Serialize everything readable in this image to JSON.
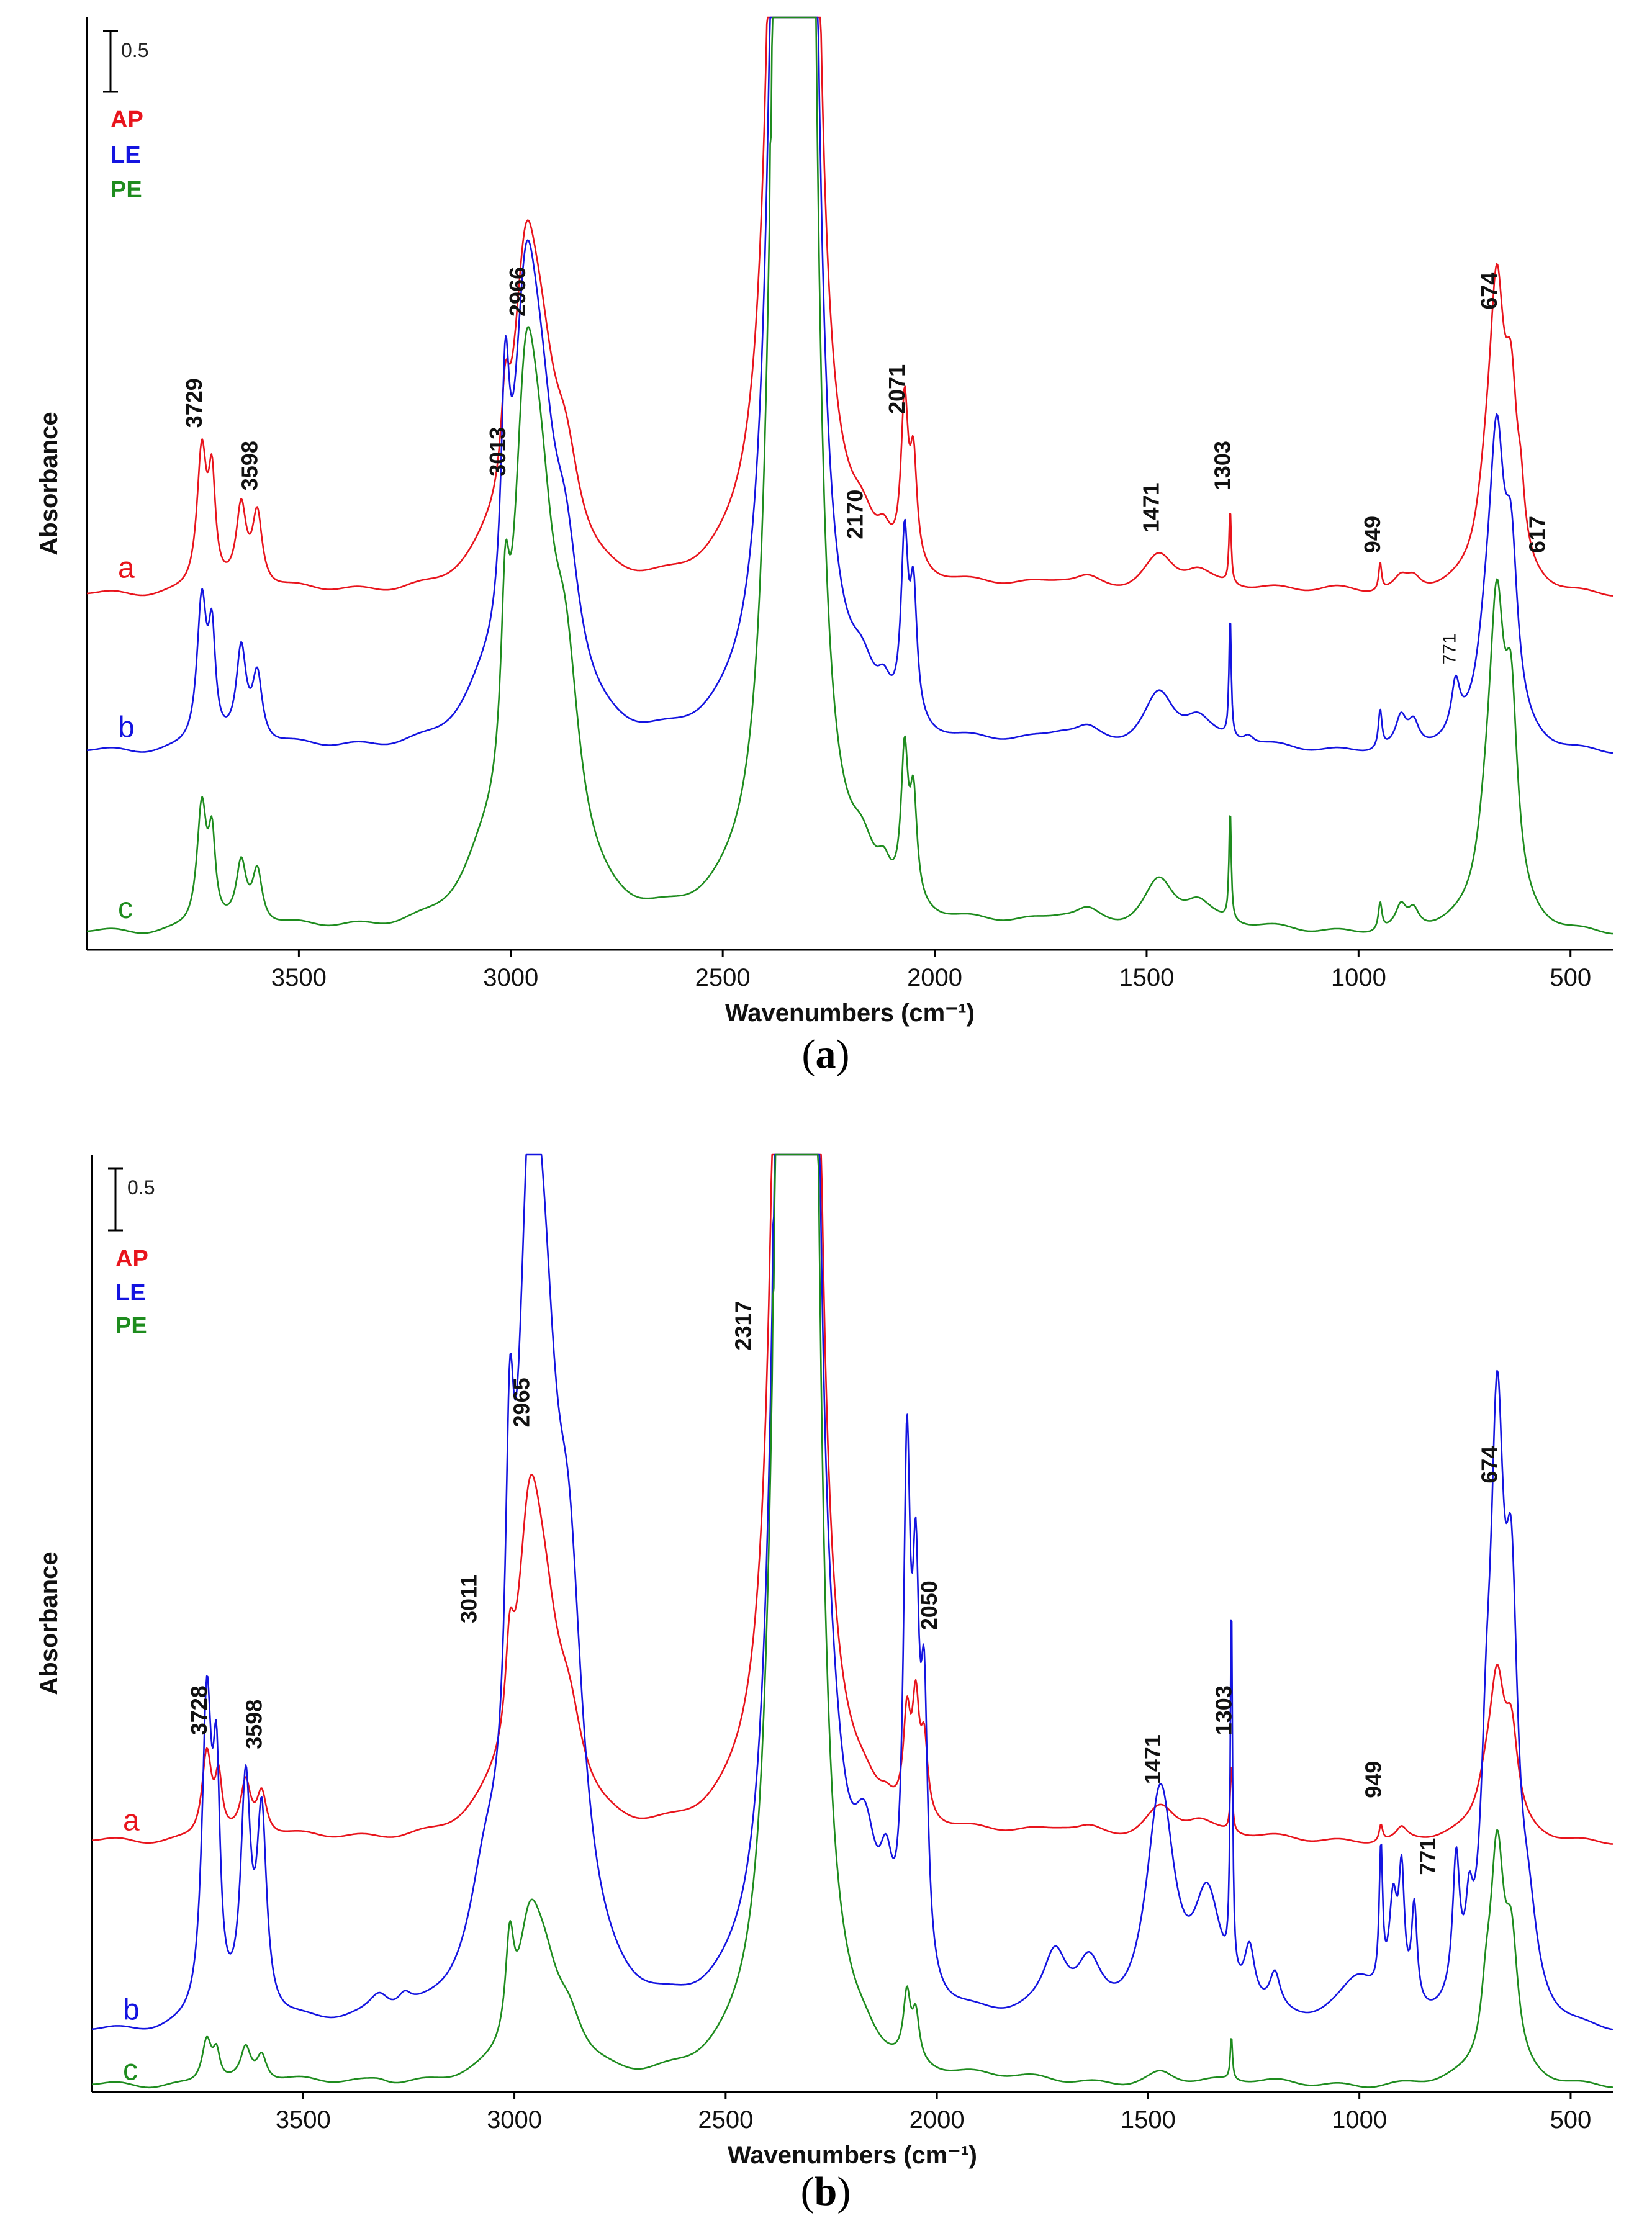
{
  "chart_data": [
    {
      "id": "panel-a",
      "type": "line",
      "caption": "(a)",
      "caption_letter": "a",
      "xlabel": "Wavenumbers (cm⁻¹)",
      "ylabel": "Absorbance",
      "xlim": [
        4000,
        400
      ],
      "ylim": [
        0,
        6.7
      ],
      "xticks": [
        3500,
        3000,
        2500,
        2000,
        1500,
        1000,
        500
      ],
      "scale_bar": {
        "label": "0.5",
        "value": 0.5
      },
      "legend": [
        {
          "label": "AP",
          "color": "#e8141c"
        },
        {
          "label": "LE",
          "color": "#1414e0"
        },
        {
          "label": "PE",
          "color": "#1e8c1e"
        }
      ],
      "trace_labels": [
        "a",
        "b",
        "c"
      ],
      "series": [
        {
          "name": "AP",
          "trace": "a",
          "color": "#e8141c",
          "baseline": 2.55,
          "clip": 6.7,
          "peaks": [
            [
              3729,
              1.0,
              14
            ],
            [
              3705,
              0.72,
              10
            ],
            [
              3636,
              0.55,
              14
            ],
            [
              3598,
              0.52,
              14
            ],
            [
              3050,
              0.12,
              60
            ],
            [
              3013,
              0.62,
              12
            ],
            [
              2966,
              1.75,
              35
            ],
            [
              2930,
              1.1,
              45
            ],
            [
              2870,
              0.65,
              40
            ],
            [
              2360,
              9,
              25
            ],
            [
              2330,
              9,
              20
            ],
            [
              2300,
              9,
              20
            ],
            [
              2170,
              0.22,
              35
            ],
            [
              2120,
              0.18,
              20
            ],
            [
              2071,
              1.12,
              10
            ],
            [
              2050,
              0.72,
              10
            ],
            [
              1700,
              0.05,
              50
            ],
            [
              1640,
              0.07,
              40
            ],
            [
              1471,
              0.25,
              45
            ],
            [
              1380,
              0.12,
              40
            ],
            [
              1303,
              0.55,
              3
            ],
            [
              1050,
              0.04,
              80
            ],
            [
              949,
              0.2,
              4
            ],
            [
              900,
              0.08,
              20
            ],
            [
              870,
              0.08,
              20
            ],
            [
              700,
              0.4,
              25
            ],
            [
              674,
              1.92,
              22
            ],
            [
              640,
              1.1,
              18
            ],
            [
              617,
              0.3,
              10
            ]
          ]
        },
        {
          "name": "LE",
          "trace": "b",
          "color": "#1414e0",
          "baseline": 1.42,
          "clip": 6.7,
          "peaks": [
            [
              3729,
              1.05,
              14
            ],
            [
              3705,
              0.72,
              10
            ],
            [
              3636,
              0.65,
              14
            ],
            [
              3598,
              0.48,
              14
            ],
            [
              3070,
              0.16,
              55
            ],
            [
              3013,
              1.6,
              12
            ],
            [
              2966,
              2.35,
              35
            ],
            [
              2930,
              1.55,
              45
            ],
            [
              2870,
              0.95,
              40
            ],
            [
              2360,
              9,
              25
            ],
            [
              2330,
              9,
              20
            ],
            [
              2300,
              9,
              20
            ],
            [
              2170,
              0.27,
              35
            ],
            [
              2120,
              0.2,
              20
            ],
            [
              2071,
              1.25,
              10
            ],
            [
              2050,
              0.88,
              10
            ],
            [
              1700,
              0.08,
              50
            ],
            [
              1640,
              0.1,
              40
            ],
            [
              1471,
              0.38,
              45
            ],
            [
              1380,
              0.18,
              40
            ],
            [
              1303,
              0.9,
              3
            ],
            [
              1260,
              0.06,
              15
            ],
            [
              949,
              0.28,
              5
            ],
            [
              900,
              0.2,
              15
            ],
            [
              870,
              0.16,
              15
            ],
            [
              771,
              0.34,
              12
            ],
            [
              700,
              0.45,
              25
            ],
            [
              674,
              1.95,
              22
            ],
            [
              640,
              1.1,
              18
            ]
          ]
        },
        {
          "name": "PE",
          "trace": "c",
          "color": "#1e8c1e",
          "baseline": 0.12,
          "clip": 6.7,
          "peaks": [
            [
              3729,
              0.88,
              14
            ],
            [
              3705,
              0.58,
              10
            ],
            [
              3636,
              0.42,
              14
            ],
            [
              3598,
              0.38,
              14
            ],
            [
              3070,
              0.2,
              55
            ],
            [
              3013,
              1.15,
              12
            ],
            [
              2966,
              2.75,
              35
            ],
            [
              2930,
              1.9,
              45
            ],
            [
              2870,
              1.3,
              40
            ],
            [
              2360,
              9,
              25
            ],
            [
              2330,
              9,
              20
            ],
            [
              2300,
              9,
              20
            ],
            [
              2170,
              0.28,
              35
            ],
            [
              2120,
              0.2,
              20
            ],
            [
              2071,
              1.02,
              10
            ],
            [
              2050,
              0.72,
              10
            ],
            [
              1700,
              0.06,
              50
            ],
            [
              1640,
              0.1,
              40
            ],
            [
              1471,
              0.34,
              45
            ],
            [
              1380,
              0.16,
              40
            ],
            [
              1303,
              0.82,
              3
            ],
            [
              949,
              0.2,
              5
            ],
            [
              900,
              0.15,
              15
            ],
            [
              870,
              0.12,
              15
            ],
            [
              700,
              0.4,
              25
            ],
            [
              674,
              2.05,
              22
            ],
            [
              640,
              1.3,
              18
            ]
          ]
        }
      ],
      "annotations": [
        {
          "text": "3729",
          "x": 3729,
          "y": 3.75,
          "bold": true
        },
        {
          "text": "3598",
          "x": 3598,
          "y": 3.3,
          "bold": true
        },
        {
          "text": "3013",
          "x": 3013,
          "y": 3.4,
          "bold": true
        },
        {
          "text": "2966",
          "x": 2966,
          "y": 4.55,
          "bold": true
        },
        {
          "text": "2170",
          "x": 2170,
          "y": 2.95,
          "bold": true
        },
        {
          "text": "2071",
          "x": 2071,
          "y": 3.85,
          "bold": true
        },
        {
          "text": "1471",
          "x": 1471,
          "y": 3.0,
          "bold": true
        },
        {
          "text": "1303",
          "x": 1303,
          "y": 3.3,
          "bold": true
        },
        {
          "text": "949",
          "x": 949,
          "y": 2.85,
          "bold": true
        },
        {
          "text": "771",
          "x": 771,
          "y": 2.05,
          "bold": false
        },
        {
          "text": "674",
          "x": 674,
          "y": 4.6,
          "bold": true
        },
        {
          "text": "617",
          "x": 560,
          "y": 2.85,
          "bold": true
        }
      ]
    },
    {
      "id": "panel-b",
      "type": "line",
      "caption": "(b)",
      "caption_letter": "b",
      "xlabel": "Wavenumbers (cm⁻¹)",
      "ylabel": "Absorbance",
      "xlim": [
        4000,
        400
      ],
      "ylim": [
        0,
        6.7
      ],
      "xticks": [
        3500,
        3000,
        2500,
        2000,
        1500,
        1000,
        500
      ],
      "scale_bar": {
        "label": "0.5",
        "value": 0.5
      },
      "legend": [
        {
          "label": "AP",
          "color": "#e8141c"
        },
        {
          "label": "LE",
          "color": "#1414e0"
        },
        {
          "label": "PE",
          "color": "#1e8c1e"
        }
      ],
      "trace_labels": [
        "a",
        "b",
        "c"
      ],
      "series": [
        {
          "name": "AP",
          "trace": "a",
          "color": "#e8141c",
          "baseline": 1.79,
          "clip": 6.7,
          "peaks": [
            [
              3728,
              0.62,
              14
            ],
            [
              3700,
              0.4,
              10
            ],
            [
              3636,
              0.36,
              14
            ],
            [
              3598,
              0.3,
              14
            ],
            [
              3050,
              0.1,
              60
            ],
            [
              3011,
              0.62,
              12
            ],
            [
              2965,
              1.72,
              35
            ],
            [
              2930,
              1.05,
              45
            ],
            [
              2870,
              0.55,
              40
            ],
            [
              2360,
              9,
              25
            ],
            [
              2330,
              9,
              20
            ],
            [
              2300,
              9,
              20
            ],
            [
              2170,
              0.1,
              35
            ],
            [
              2120,
              0.08,
              20
            ],
            [
              2071,
              0.65,
              10
            ],
            [
              2050,
              0.75,
              10
            ],
            [
              2030,
              0.5,
              10
            ],
            [
              1700,
              0.05,
              50
            ],
            [
              1640,
              0.05,
              40
            ],
            [
              1471,
              0.22,
              45
            ],
            [
              1380,
              0.1,
              40
            ],
            [
              1303,
              0.5,
              3
            ],
            [
              949,
              0.12,
              5
            ],
            [
              900,
              0.08,
              15
            ],
            [
              700,
              0.25,
              25
            ],
            [
              674,
              1.0,
              22
            ],
            [
              640,
              0.6,
              18
            ]
          ]
        },
        {
          "name": "LE",
          "trace": "b",
          "color": "#1414e0",
          "baseline": 0.42,
          "clip": 6.7,
          "peaks": [
            [
              3728,
              2.25,
              14
            ],
            [
              3705,
              1.5,
              10
            ],
            [
              3636,
              1.6,
              14
            ],
            [
              3598,
              1.4,
              14
            ],
            [
              3320,
              0.15,
              30
            ],
            [
              3260,
              0.1,
              20
            ],
            [
              3070,
              0.55,
              45
            ],
            [
              3011,
              2.15,
              12
            ],
            [
              2965,
              4.15,
              35
            ],
            [
              2930,
              3.1,
              45
            ],
            [
              2870,
              2.2,
              40
            ],
            [
              2360,
              9,
              25
            ],
            [
              2330,
              9,
              20
            ],
            [
              2300,
              9,
              20
            ],
            [
              2250,
              0.7,
              40
            ],
            [
              2170,
              0.85,
              35
            ],
            [
              2120,
              0.58,
              20
            ],
            [
              2071,
              3.45,
              10
            ],
            [
              2050,
              2.35,
              10
            ],
            [
              2030,
              1.8,
              10
            ],
            [
              1720,
              0.45,
              35
            ],
            [
              1640,
              0.35,
              35
            ],
            [
              1471,
              1.62,
              40
            ],
            [
              1360,
              0.8,
              40
            ],
            [
              1303,
              2.75,
              3
            ],
            [
              1260,
              0.4,
              15
            ],
            [
              1200,
              0.25,
              15
            ],
            [
              1000,
              0.35,
              60
            ],
            [
              949,
              1.0,
              5
            ],
            [
              920,
              0.7,
              12
            ],
            [
              900,
              0.85,
              8
            ],
            [
              870,
              0.7,
              8
            ],
            [
              771,
              0.95,
              10
            ],
            [
              740,
              0.45,
              10
            ],
            [
              700,
              1.0,
              15
            ],
            [
              674,
              3.85,
              20
            ],
            [
              640,
              2.4,
              18
            ],
            [
              600,
              0.5,
              25
            ]
          ]
        },
        {
          "name": "PE",
          "trace": "c",
          "color": "#1e8c1e",
          "baseline": 0.05,
          "clip": 6.7,
          "peaks": [
            [
              3728,
              0.32,
              14
            ],
            [
              3705,
              0.2,
              10
            ],
            [
              3636,
              0.22,
              14
            ],
            [
              3598,
              0.18,
              14
            ],
            [
              3320,
              0.03,
              30
            ],
            [
              3011,
              0.68,
              12
            ],
            [
              2965,
              0.82,
              35
            ],
            [
              2930,
              0.55,
              45
            ],
            [
              2870,
              0.3,
              40
            ],
            [
              2360,
              9,
              25
            ],
            [
              2330,
              9,
              20
            ],
            [
              2300,
              9,
              20
            ],
            [
              2170,
              0.08,
              35
            ],
            [
              2071,
              0.45,
              10
            ],
            [
              2050,
              0.32,
              10
            ],
            [
              1471,
              0.08,
              40
            ],
            [
              1303,
              0.32,
              3
            ],
            [
              700,
              0.35,
              15
            ],
            [
              674,
              1.55,
              20
            ],
            [
              640,
              0.8,
              18
            ]
          ]
        }
      ],
      "annotations": [
        {
          "text": "3728",
          "x": 3728,
          "y": 2.55,
          "bold": true
        },
        {
          "text": "3598",
          "x": 3598,
          "y": 2.45,
          "bold": true
        },
        {
          "text": "3011",
          "x": 3090,
          "y": 3.35,
          "bold": true
        },
        {
          "text": "2965",
          "x": 2965,
          "y": 4.75,
          "bold": true
        },
        {
          "text": "2317",
          "x": 2440,
          "y": 5.3,
          "bold": true
        },
        {
          "text": "2050",
          "x": 2000,
          "y": 3.3,
          "bold": true
        },
        {
          "text": "1471",
          "x": 1471,
          "y": 2.2,
          "bold": true
        },
        {
          "text": "1303",
          "x": 1303,
          "y": 2.55,
          "bold": true
        },
        {
          "text": "949",
          "x": 949,
          "y": 2.1,
          "bold": true
        },
        {
          "text": "771",
          "x": 820,
          "y": 1.55,
          "bold": true
        },
        {
          "text": "674",
          "x": 674,
          "y": 4.35,
          "bold": true
        }
      ]
    }
  ]
}
